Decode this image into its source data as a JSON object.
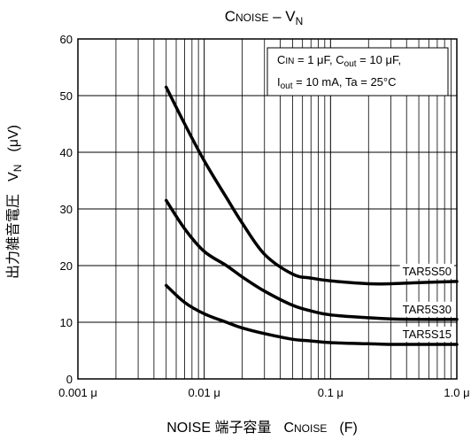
{
  "chart_data": {
    "type": "line",
    "title": "C_NOISE – V_N",
    "title_parts": {
      "c": "C",
      "c_sub": "NOISE",
      "dash": " – ",
      "v": "V",
      "v_sub": "N"
    },
    "xlabel": "NOISE 端子容量　C_NOISE　(F)",
    "xlabel_parts": {
      "prefix": "NOISE 端子容量",
      "c": "C",
      "c_sub": "NOISE",
      "unit": "(F)"
    },
    "ylabel": "出力雑音電圧　V_N　(μV)",
    "ylabel_parts": {
      "text": "出力雑音電圧",
      "v": "V",
      "v_sub": "N",
      "unit": "(μV)"
    },
    "x_scale": "log",
    "xlim": [
      0.001,
      1.0
    ],
    "ylim": [
      0,
      60
    ],
    "x_ticks": [
      {
        "value": 0.001,
        "label": "0.001 μ"
      },
      {
        "value": 0.01,
        "label": "0.01 μ"
      },
      {
        "value": 0.1,
        "label": "0.1 μ"
      },
      {
        "value": 1.0,
        "label": "1.0 μ"
      }
    ],
    "y_ticks": [
      0,
      10,
      20,
      30,
      40,
      50,
      60
    ],
    "grid": true,
    "conditions": [
      {
        "c_in": "C",
        "c_in_sub": "IN",
        "c_in_val": " = 1 μF, ",
        "c_out": "C",
        "c_out_sub": "out",
        "c_out_val": " = 10 μF,"
      },
      {
        "i_out": "I",
        "i_out_sub": "out",
        "i_out_val": " = 10 mA, Ta = 25°C"
      }
    ],
    "series": [
      {
        "name": "TAR5S50",
        "x": [
          0.005,
          0.007,
          0.01,
          0.015,
          0.02,
          0.03,
          0.05,
          0.07,
          0.1,
          0.2,
          0.3,
          0.5,
          1.0
        ],
        "y": [
          51.5,
          45.0,
          38.5,
          32.0,
          27.5,
          22.0,
          18.5,
          17.8,
          17.3,
          16.8,
          16.8,
          17.0,
          17.2
        ]
      },
      {
        "name": "TAR5S30",
        "x": [
          0.005,
          0.007,
          0.01,
          0.015,
          0.02,
          0.03,
          0.05,
          0.07,
          0.1,
          0.2,
          0.3,
          0.5,
          1.0
        ],
        "y": [
          31.5,
          26.5,
          22.5,
          20.0,
          18.0,
          15.5,
          13.0,
          12.0,
          11.3,
          10.8,
          10.6,
          10.5,
          10.5
        ]
      },
      {
        "name": "TAR5S15",
        "x": [
          0.005,
          0.007,
          0.01,
          0.015,
          0.02,
          0.03,
          0.05,
          0.07,
          0.1,
          0.2,
          0.3,
          0.5,
          1.0
        ],
        "y": [
          16.5,
          13.5,
          11.5,
          10.0,
          9.0,
          8.0,
          7.0,
          6.7,
          6.4,
          6.2,
          6.1,
          6.1,
          6.1
        ]
      }
    ],
    "series_label_positions": [
      "right-end-above",
      "right-end-above",
      "right-end-above"
    ],
    "line_color": "#000000"
  }
}
